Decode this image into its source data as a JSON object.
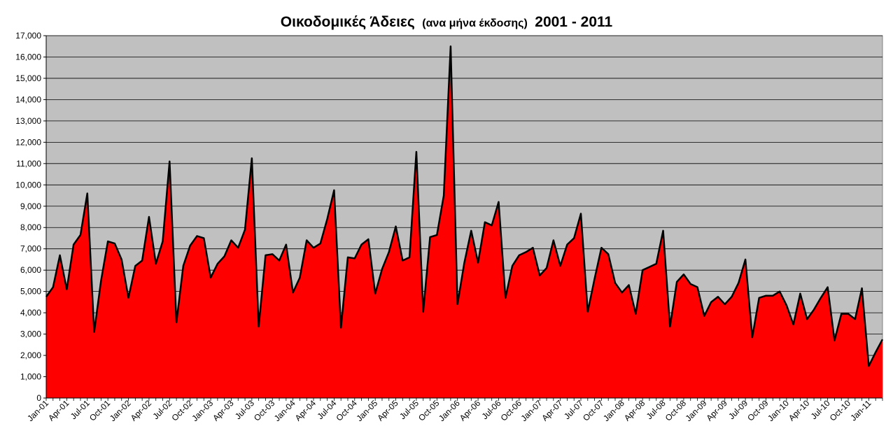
{
  "chart_data": {
    "type": "area",
    "title": "Οικοδομικές Άδειες",
    "subtitle": "(ανα μήνα έκδοσης)",
    "title_suffix": "2001 - 2011",
    "xlabel": "",
    "ylabel": "",
    "ylim": [
      0,
      17000
    ],
    "ytick_step": 1000,
    "grid": true,
    "legend": "none",
    "x_tick_labels": [
      "Jan-01",
      "Apr-01",
      "Jul-01",
      "Oct-01",
      "Jan-02",
      "Apr-02",
      "Jul-02",
      "Oct-02",
      "Jan-03",
      "Apr-03",
      "Jul-03",
      "Oct-03",
      "Jan-04",
      "Apr-04",
      "Jul-04",
      "Oct-04",
      "Jan-05",
      "Apr-05",
      "Jul-05",
      "Oct-05",
      "Jan-06",
      "Apr-06",
      "Jul-06",
      "Oct-06",
      "Jan-07",
      "Apr-07",
      "Jul-07",
      "Oct-07",
      "Jan-08",
      "Apr-08",
      "Jul-08",
      "Oct-08",
      "Jan-09",
      "Apr-09",
      "Jul-09",
      "Oct-09",
      "Jan-10",
      "Apr-10",
      "Jul-10",
      "Oct-10",
      "Jan-11"
    ],
    "x_tick_every": 3,
    "series": [
      {
        "start": "Jan-01",
        "values": [
          4750,
          5200,
          6700,
          5100,
          7200,
          7650,
          9600,
          3100,
          5500,
          7350,
          7250,
          6500,
          4700,
          6200,
          6450,
          8500,
          6300,
          7350,
          11100,
          3550,
          6200,
          7150,
          7600,
          7500,
          5650,
          6300,
          6650,
          7400,
          7050,
          7900,
          11250,
          3350,
          6700,
          6750,
          6450,
          7200,
          4950,
          5650,
          7400,
          7050,
          7250,
          8400,
          9750,
          3300,
          6600,
          6550,
          7200,
          7450,
          4900,
          6050,
          6850,
          8050,
          6450,
          6600,
          11550,
          4050,
          7550,
          7650,
          9500,
          16500,
          4400,
          6350,
          7850,
          6350,
          8250,
          8100,
          9200,
          4700,
          6200,
          6700,
          6850,
          7050,
          5750,
          6100,
          7400,
          6200,
          7200,
          7500,
          8650,
          4050,
          5600,
          7050,
          6750,
          5400,
          4950,
          5300,
          3950,
          6000,
          6150,
          6300,
          7850,
          3350,
          5450,
          5800,
          5350,
          5200,
          3850,
          4500,
          4750,
          4400,
          4750,
          5400,
          6500,
          2850,
          4700,
          4800,
          4800,
          5000,
          4350,
          3450,
          4900,
          3700,
          4150,
          4700,
          5200,
          2700,
          3950,
          3950,
          3700,
          5150,
          1500,
          2150,
          2750
        ]
      }
    ],
    "colors": {
      "fill": "#ff0000",
      "line": "#000000",
      "plot_bg": "#c0c0c0",
      "grid": "#000000"
    }
  }
}
